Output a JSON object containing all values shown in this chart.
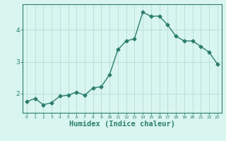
{
  "x": [
    0,
    1,
    2,
    3,
    4,
    5,
    6,
    7,
    8,
    9,
    10,
    11,
    12,
    13,
    14,
    15,
    16,
    17,
    18,
    19,
    20,
    21,
    22,
    23
  ],
  "y": [
    1.75,
    1.85,
    1.65,
    1.72,
    1.92,
    1.95,
    2.05,
    1.95,
    2.18,
    2.22,
    2.6,
    3.38,
    3.65,
    3.72,
    4.55,
    4.42,
    4.43,
    4.15,
    3.8,
    3.65,
    3.65,
    3.48,
    3.3,
    2.93
  ],
  "line_color": "#2d7d6e",
  "marker": "D",
  "markersize": 2.5,
  "linewidth": 1.0,
  "xlabel": "Humidex (Indice chaleur)",
  "xlabel_fontsize": 7.5,
  "bg_color": "#d8f5f0",
  "grid_color": "#b8ddd6",
  "tick_color": "#2d7d6e",
  "axis_color": "#2d7d6e",
  "xlim": [
    -0.5,
    23.5
  ],
  "ylim": [
    1.4,
    4.8
  ],
  "yticks": [
    2,
    3,
    4
  ],
  "xticks": [
    0,
    1,
    2,
    3,
    4,
    5,
    6,
    7,
    8,
    9,
    10,
    11,
    12,
    13,
    14,
    15,
    16,
    17,
    18,
    19,
    20,
    21,
    22,
    23
  ]
}
